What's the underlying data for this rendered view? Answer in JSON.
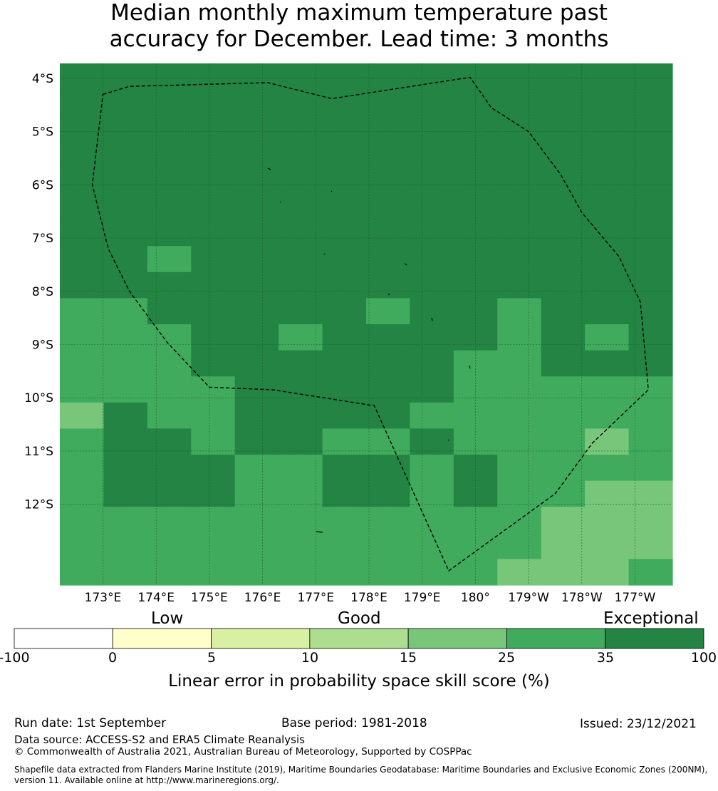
{
  "title": {
    "line1": "Median monthly maximum temperature past",
    "line2": "accuracy for December. Lead time: 3 months"
  },
  "map": {
    "lon_labels": [
      "173°E",
      "174°E",
      "175°E",
      "176°E",
      "177°E",
      "178°E",
      "179°E",
      "180°",
      "179°W",
      "178°W",
      "177°W"
    ],
    "lat_labels": [
      "4°S",
      "5°S",
      "6°S",
      "7°S",
      "8°S",
      "9°S",
      "10°S",
      "11°S",
      "12°S"
    ],
    "colors": {
      "c25_35": "#41ab5d",
      "c35_100": "#238443",
      "c15_25": "#78c679",
      "c10_15": "#addd8e",
      "eez_line": "#000000"
    },
    "grid_categories": [
      "GGGGGGGGGGGGGG",
      "GGGGGGGGGGGGGG",
      "GGGGGGGGGGGGGG",
      "GGGGGGGGGGGGGG",
      "GGGGGGGGGGGGGG",
      "GGGGGGGGGGGGGG",
      "GGGGGGGGGGGGGG",
      "GGMGGGGGGGGGGG",
      "GGGGGGGGGGGGGG",
      "MMGGGGGMGGMGGG",
      "MMMGGMGGGGMGMG",
      "MMMGGGGGGMMGGG",
      "MMMMGGGGGMMMMM",
      "LGMMGGGGMMMMMM",
      "MGGMGGMMGMMMLM",
      "MGGGMMGGMGMMMM",
      "MGGGMMGGMGMMLL",
      "MMMMMMMMMMMLLL",
      "MMMMMMMMMMMLLL",
      "MMMMMMMMMMLLLM"
    ],
    "eez_boundary_lonlat": [
      [
        173.0,
        -4.3
      ],
      [
        173.5,
        -4.15
      ],
      [
        176.1,
        -4.08
      ],
      [
        177.3,
        -4.38
      ],
      [
        179.9,
        -3.98
      ],
      [
        -179.7,
        -4.55
      ],
      [
        -179.0,
        -5.0
      ],
      [
        -178.4,
        -5.8
      ],
      [
        -178.0,
        -6.52
      ],
      [
        -177.3,
        -7.35
      ],
      [
        -176.9,
        -8.2
      ],
      [
        -176.75,
        -9.85
      ],
      [
        -177.8,
        -10.85
      ],
      [
        -178.5,
        -11.8
      ],
      [
        -180.5,
        -13.25
      ],
      [
        178.1,
        -10.15
      ],
      [
        176.2,
        -9.85
      ],
      [
        175.0,
        -9.8
      ],
      [
        174.2,
        -8.95
      ],
      [
        173.5,
        -8.0
      ],
      [
        173.1,
        -7.2
      ],
      [
        172.8,
        -6.0
      ],
      [
        173.0,
        -4.3
      ]
    ]
  },
  "colorbar": {
    "categories": [
      "Low",
      "Good",
      "Exceptional"
    ],
    "ticks": [
      "-100",
      "0",
      "5",
      "10",
      "15",
      "25",
      "35",
      "100"
    ],
    "colors": [
      "#ffffff",
      "#ffffcc",
      "#d9f0a3",
      "#addd8e",
      "#78c679",
      "#41ab5d",
      "#238443"
    ],
    "label": "Linear error in probability space skill score (%)"
  },
  "footer": {
    "run_date": "Run date: 1st September",
    "base_period": "Base period: 1981-2018",
    "issued": "Issued: 23/12/2021",
    "data_source": "Data source: ACCESS-S2 and ERA5 Climate Reanalysis",
    "copyright": "© Commonwealth of Australia 2021, Australian Bureau of Meteorology, Supported by COSPPac",
    "shapefile": "Shapefile data extracted from Flanders Marine Institute (2019), Maritime Boundaries Geodatabase: Maritime Boundaries and Exclusive Economic Zones (200NM), version 11. Available online at http://www.marineregions.org/."
  }
}
